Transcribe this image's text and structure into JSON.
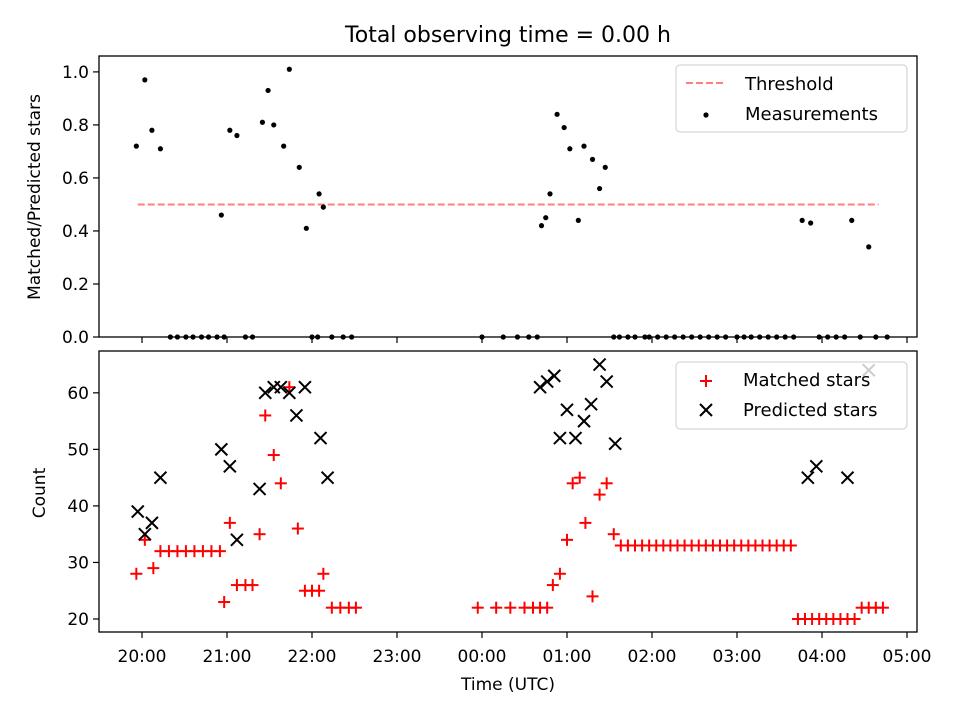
{
  "chart_data": [
    {
      "type": "scatter",
      "title": "Total observing time = 0.00 h",
      "xlabel": "",
      "ylabel": "Matched/Predicted stars",
      "ylim": [
        0,
        1.06
      ],
      "yticks": [
        0.0,
        0.2,
        0.4,
        0.6,
        0.8,
        1.0
      ],
      "ytick_labels": [
        "0.0",
        "0.2",
        "0.4",
        "0.6",
        "0.8",
        "1.0"
      ],
      "legend": {
        "placement": "top-right",
        "entries": [
          "Threshold",
          "Measurements"
        ]
      },
      "threshold": {
        "name": "Threshold",
        "value": 0.5,
        "x_start": "19:57",
        "x_end": "04:40",
        "color": "#ff7f7f"
      },
      "series": [
        {
          "name": "Measurements",
          "color": "#000000",
          "x": [
            "19:56",
            "20:02",
            "20:07",
            "20:13",
            "20:20",
            "20:25",
            "20:31",
            "20:36",
            "20:42",
            "20:47",
            "20:53",
            "20:58",
            "20:56",
            "21:02",
            "21:07",
            "21:13",
            "21:18",
            "21:25",
            "21:29",
            "21:33",
            "21:40",
            "21:44",
            "21:51",
            "21:56",
            "22:04",
            "22:00",
            "22:05",
            "22:08",
            "22:14",
            "22:22",
            "22:28",
            "00:00",
            "00:15",
            "00:25",
            "00:33",
            "00:39",
            "00:42",
            "00:45",
            "00:48",
            "00:53",
            "00:58",
            "01:02",
            "01:08",
            "01:12",
            "01:18",
            "01:23",
            "01:27",
            "01:33",
            "01:37",
            "01:43",
            "01:48",
            "01:55",
            "01:58",
            "02:04",
            "02:10",
            "02:16",
            "02:22",
            "02:28",
            "02:34",
            "02:40",
            "02:46",
            "02:52",
            "03:00",
            "03:05",
            "03:10",
            "03:16",
            "03:22",
            "03:28",
            "03:34",
            "03:40",
            "03:46",
            "03:52",
            "03:58",
            "04:04",
            "04:10",
            "04:16",
            "04:21",
            "04:27",
            "04:33",
            "04:38",
            "04:46"
          ],
          "y": [
            0.72,
            0.97,
            0.78,
            0.71,
            0.0,
            0.0,
            0.0,
            0.0,
            0.0,
            0.0,
            0.0,
            0.0,
            0.46,
            0.78,
            0.76,
            0.0,
            0.0,
            0.81,
            0.93,
            0.8,
            0.72,
            1.01,
            0.64,
            0.41,
            0.0,
            0.0,
            0.54,
            0.49,
            0.0,
            0.0,
            0.0,
            0.0,
            0.0,
            0.0,
            0.0,
            0.0,
            0.42,
            0.45,
            0.54,
            0.84,
            0.79,
            0.71,
            0.44,
            0.72,
            0.67,
            0.56,
            0.64,
            0.0,
            0.0,
            0.0,
            0.0,
            0.0,
            0.0,
            0.0,
            0.0,
            0.0,
            0.0,
            0.0,
            0.0,
            0.0,
            0.0,
            0.0,
            0.0,
            0.0,
            0.0,
            0.0,
            0.0,
            0.0,
            0.0,
            0.0,
            0.44,
            0.43,
            0.0,
            0.0,
            0.0,
            0.0,
            0.44,
            0.0,
            0.34,
            0.0,
            0.0
          ]
        }
      ]
    },
    {
      "type": "scatter",
      "title": "",
      "xlabel": "Time (UTC)",
      "ylabel": "Count",
      "ylim": [
        17.7,
        67.4
      ],
      "yticks": [
        20,
        30,
        40,
        50,
        60
      ],
      "ytick_labels": [
        "20",
        "30",
        "40",
        "50",
        "60"
      ],
      "x_tick_labels": [
        "20:00",
        "21:00",
        "22:00",
        "23:00",
        "00:00",
        "01:00",
        "02:00",
        "03:00",
        "04:00",
        "05:00"
      ],
      "legend": {
        "placement": "top-right",
        "entries": [
          "Matched stars",
          "Predicted stars"
        ]
      },
      "series": [
        {
          "name": "Matched stars",
          "marker": "plus",
          "color": "#ff0000",
          "x": [
            "19:56",
            "20:02",
            "20:08",
            "20:13",
            "20:19",
            "20:25",
            "20:31",
            "20:37",
            "20:43",
            "20:49",
            "20:55",
            "20:58",
            "21:02",
            "21:07",
            "21:13",
            "21:18",
            "21:23",
            "21:27",
            "21:33",
            "21:38",
            "21:44",
            "21:50",
            "21:55",
            "22:00",
            "22:05",
            "22:08",
            "22:14",
            "22:20",
            "22:26",
            "22:31",
            "23:57",
            "00:10",
            "00:20",
            "00:30",
            "00:36",
            "00:41",
            "00:46",
            "00:50",
            "00:55",
            "01:00",
            "01:04",
            "01:09",
            "01:13",
            "01:18",
            "01:23",
            "01:28",
            "01:33",
            "01:38",
            "01:43",
            "01:48",
            "01:53",
            "01:58",
            "02:03",
            "02:08",
            "02:13",
            "02:18",
            "02:23",
            "02:28",
            "02:33",
            "02:38",
            "02:43",
            "02:48",
            "02:53",
            "02:58",
            "03:03",
            "03:08",
            "03:13",
            "03:18",
            "03:23",
            "03:28",
            "03:33",
            "03:38",
            "03:43",
            "03:48",
            "03:53",
            "03:58",
            "04:03",
            "04:08",
            "04:13",
            "04:18",
            "04:23",
            "04:28",
            "04:33",
            "04:38",
            "04:43"
          ],
          "y": [
            28,
            34,
            29,
            32,
            32,
            32,
            32,
            32,
            32,
            32,
            32,
            23,
            37,
            26,
            26,
            26,
            35,
            56,
            49,
            44,
            61,
            36,
            25,
            25,
            25,
            28,
            22,
            22,
            22,
            22,
            22,
            22,
            22,
            22,
            22,
            22,
            22,
            26,
            28,
            34,
            44,
            45,
            37,
            24,
            42,
            44,
            35,
            33,
            33,
            33,
            33,
            33,
            33,
            33,
            33,
            33,
            33,
            33,
            33,
            33,
            33,
            33,
            33,
            33,
            33,
            33,
            33,
            33,
            33,
            33,
            33,
            33,
            20,
            20,
            20,
            20,
            20,
            20,
            20,
            20,
            20,
            22,
            22,
            22,
            22
          ]
        },
        {
          "name": "Predicted stars",
          "marker": "x",
          "color": "#000000",
          "x": [
            "19:57",
            "20:02",
            "20:07",
            "20:13",
            "20:56",
            "21:02",
            "21:07",
            "21:23",
            "21:27",
            "21:33",
            "21:38",
            "21:44",
            "21:49",
            "21:55",
            "22:06",
            "22:11",
            "00:41",
            "00:46",
            "00:51",
            "00:55",
            "01:00",
            "01:06",
            "01:12",
            "01:17",
            "01:23",
            "01:28",
            "01:34",
            "03:50",
            "03:56",
            "04:18",
            "04:33"
          ],
          "y": [
            39,
            35,
            37,
            45,
            50,
            47,
            34,
            43,
            60,
            61,
            61,
            60,
            56,
            61,
            52,
            45,
            61,
            62,
            63,
            52,
            57,
            52,
            55,
            58,
            65,
            62,
            51,
            45,
            47,
            45,
            64
          ]
        }
      ]
    }
  ]
}
